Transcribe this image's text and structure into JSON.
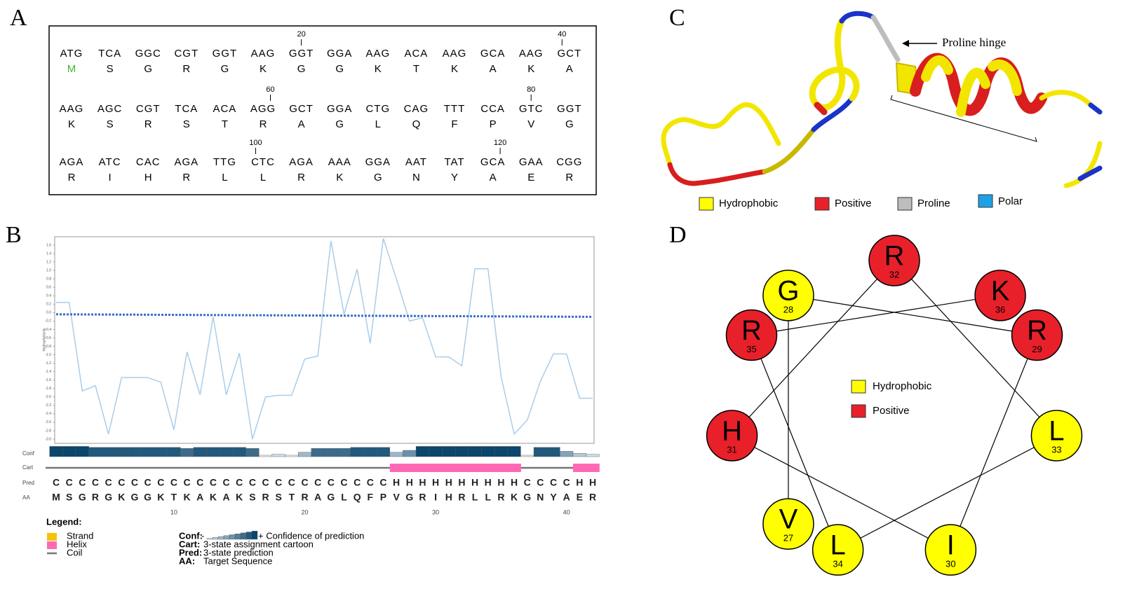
{
  "panel_labels": [
    "A",
    "B",
    "C",
    "D"
  ],
  "panel_a": {
    "codons": [
      "ATG",
      "TCA",
      "GGC",
      "CGT",
      "GGT",
      "AAG",
      "GGT",
      "GGA",
      "AAG",
      "ACA",
      "AAG",
      "GCA",
      "AAG",
      "GCT",
      "AAG",
      "AGC",
      "CGT",
      "TCA",
      "ACA",
      "AGG",
      "GCT",
      "GGA",
      "CTG",
      "CAG",
      "TTT",
      "CCA",
      "GTC",
      "GGT",
      "AGA",
      "ATC",
      "CAC",
      "AGA",
      "TTG",
      "CTC",
      "AGA",
      "AAA",
      "GGA",
      "AAT",
      "TAT",
      "GCA",
      "GAA",
      "CGG"
    ],
    "amino_acids": [
      "M",
      "S",
      "G",
      "R",
      "G",
      "K",
      "G",
      "G",
      "K",
      "T",
      "K",
      "A",
      "K",
      "A",
      "K",
      "S",
      "R",
      "S",
      "T",
      "R",
      "A",
      "G",
      "L",
      "Q",
      "F",
      "P",
      "V",
      "G",
      "R",
      "I",
      "H",
      "R",
      "L",
      "L",
      "R",
      "K",
      "G",
      "N",
      "Y",
      "A",
      "E",
      "R"
    ],
    "start_color": "#3cb832",
    "markers": [
      20,
      40,
      60,
      80,
      100,
      120
    ]
  },
  "chart_data": {
    "type": "line",
    "y_label": "Hydrophobicity",
    "x": [
      1,
      2,
      3,
      4,
      5,
      6,
      7,
      8,
      9,
      10,
      11,
      12,
      13,
      14,
      15,
      16,
      17,
      18,
      19,
      20,
      21,
      22,
      23,
      24,
      25,
      26,
      27,
      28,
      29,
      30,
      31,
      32,
      33,
      34,
      35,
      36,
      37,
      38,
      39,
      40,
      41,
      42
    ],
    "xlim": [
      1,
      42
    ],
    "ylim": [
      -3.1,
      1.8
    ],
    "yticks": [
      1.6,
      1.4,
      1.2,
      {
        "value": 1,
        "label": "1.0"
      },
      0.8,
      0.6,
      0.4,
      0.2,
      {
        "value": 0,
        "label": "0.0"
      },
      -0.2,
      -0.4,
      -0.6,
      -0.8,
      {
        "value": -1,
        "label": "-1.0"
      },
      -1.2,
      -1.4,
      -1.6,
      -1.8,
      {
        "value": -2,
        "label": "-2.0"
      },
      -2.2,
      -2.4,
      -2.6,
      -2.8,
      {
        "value": -3,
        "label": "-3.0"
      }
    ],
    "series": [
      {
        "color": "#a9cde9",
        "values": [
          0.24,
          0.24,
          -1.86,
          -1.73,
          -2.88,
          -1.54,
          -1.54,
          -1.54,
          -1.65,
          -2.78,
          -0.93,
          -1.95,
          -0.1,
          -1.95,
          -0.96,
          -3.0,
          -2.0,
          -1.96,
          -1.96,
          -1.1,
          -1.03,
          1.7,
          -0.04,
          1.03,
          -0.73,
          1.76,
          0.8,
          -0.2,
          -0.12,
          -1.05,
          -1.05,
          -1.26,
          1.04,
          1.04,
          -1.52,
          -2.88,
          -2.55,
          -1.63,
          -0.98,
          -0.98,
          -2.03,
          -2.03
        ]
      },
      {
        "color": "#3a6fc4",
        "dashed": true,
        "x": [
          1,
          42
        ],
        "values": [
          -0.04,
          -0.1
        ]
      }
    ]
  },
  "psipred": {
    "row_labels": [
      "Conf",
      "Cart",
      "Pred",
      "AA"
    ],
    "conf": [
      9,
      9,
      9,
      8,
      8,
      8,
      8,
      8,
      8,
      8,
      7,
      8,
      8,
      8,
      8,
      7,
      0,
      1,
      0,
      3,
      7,
      7,
      7,
      8,
      8,
      8,
      3,
      5,
      9,
      9,
      9,
      9,
      9,
      9,
      9,
      9,
      0,
      8,
      8,
      4,
      2,
      1
    ],
    "pred": [
      "C",
      "C",
      "C",
      "C",
      "C",
      "C",
      "C",
      "C",
      "C",
      "C",
      "C",
      "C",
      "C",
      "C",
      "C",
      "C",
      "C",
      "C",
      "C",
      "C",
      "C",
      "C",
      "C",
      "C",
      "C",
      "C",
      "H",
      "H",
      "H",
      "H",
      "H",
      "H",
      "H",
      "H",
      "H",
      "H",
      "C",
      "C",
      "C",
      "C",
      "H",
      "H"
    ],
    "helix_color": "#ff69b4",
    "strand_color": "#f5c400",
    "xticks": [
      10,
      20,
      30,
      40
    ],
    "legend_title": "Legend:",
    "legend_items": [
      "Strand",
      "Helix",
      "Coil"
    ],
    "keys": [
      {
        "key": "Conf:",
        "text": "+ Confidence of prediction",
        "prefix": "-"
      },
      {
        "key": "Cart:",
        "text": "3-state assignment cartoon"
      },
      {
        "key": "Pred:",
        "text": "3-state prediction"
      },
      {
        "key": "AA:",
        "text": "Target Sequence"
      }
    ]
  },
  "panel_c": {
    "annotation": "Proline hinge",
    "legend": [
      {
        "label": "Hydrophobic",
        "color": "#ffff00"
      },
      {
        "label": "Positive",
        "color": "#e8202a"
      },
      {
        "label": "Proline",
        "color": "#bdbdbd"
      },
      {
        "label": "Polar",
        "color": "#1ea0e8"
      }
    ]
  },
  "panel_d": {
    "nodes": [
      {
        "letter": "V",
        "number": 27,
        "color": "#ffff00"
      },
      {
        "letter": "G",
        "number": 28,
        "color": "#ffff00"
      },
      {
        "letter": "R",
        "number": 29,
        "color": "#e8202a"
      },
      {
        "letter": "I",
        "number": 30,
        "color": "#ffff00"
      },
      {
        "letter": "H",
        "number": 31,
        "color": "#e8202a"
      },
      {
        "letter": "R",
        "number": 32,
        "color": "#e8202a"
      },
      {
        "letter": "L",
        "number": 33,
        "color": "#ffff00"
      },
      {
        "letter": "L",
        "number": 34,
        "color": "#ffff00"
      },
      {
        "letter": "R",
        "number": 35,
        "color": "#e8202a"
      },
      {
        "letter": "K",
        "number": 36,
        "color": "#e8202a"
      }
    ],
    "legend": [
      {
        "label": "Hydrophobic",
        "color": "#ffff00"
      },
      {
        "label": "Positive",
        "color": "#e8202a"
      }
    ]
  }
}
